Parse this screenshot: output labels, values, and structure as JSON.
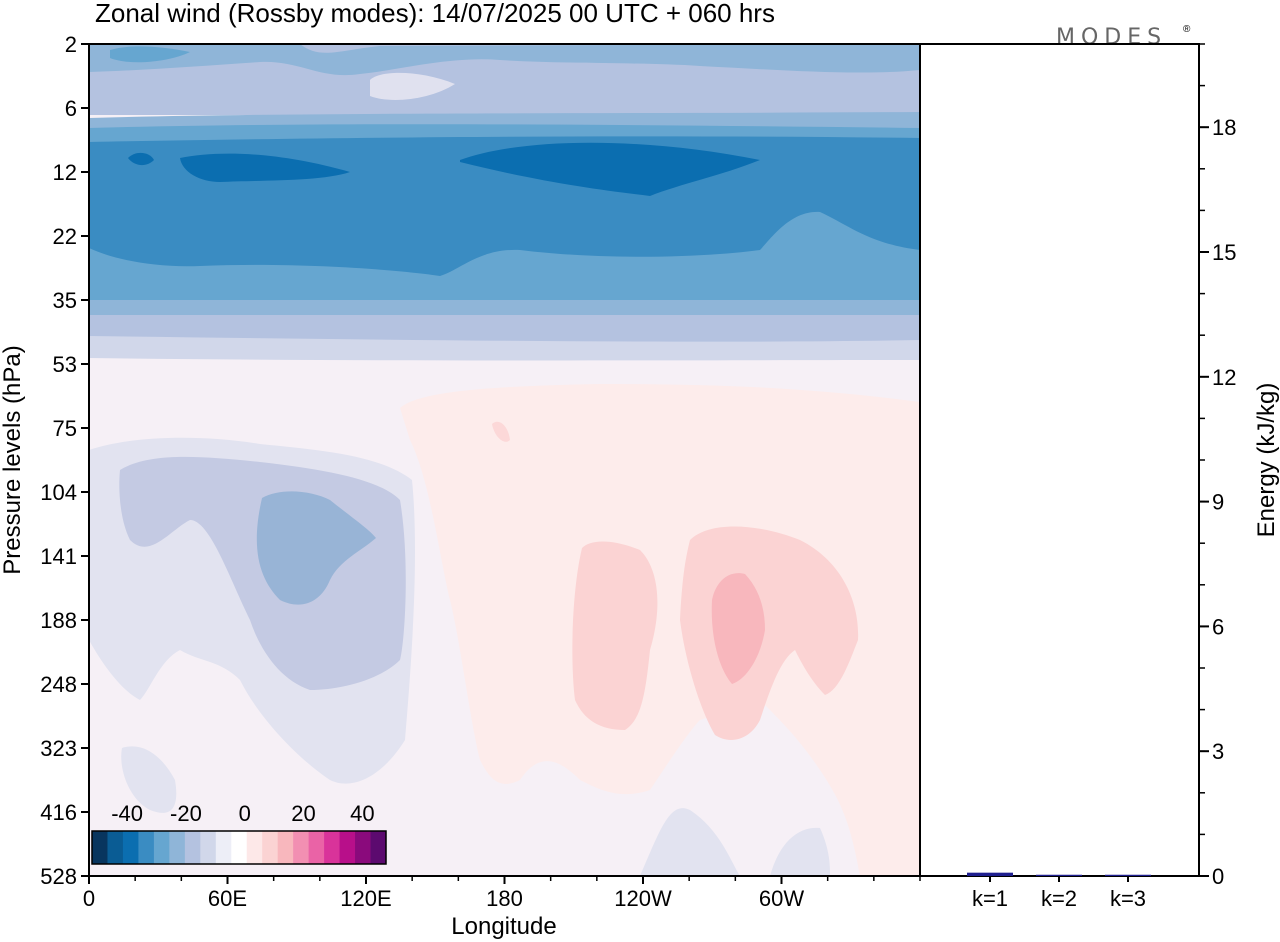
{
  "title": "Zonal wind (Rossby modes):  14/07/2025  00 UTC  + 060 hrs",
  "logo": "MODES",
  "logo_mark": "®",
  "chart_data": [
    {
      "type": "heatmap",
      "title": "Zonal wind (Rossby modes):  14/07/2025  00 UTC  + 060 hrs",
      "xlabel": "Longitude",
      "ylabel": "Pressure levels (hPa)",
      "x_ticks": [
        "0",
        "60E",
        "120E",
        "180",
        "120W",
        "60W"
      ],
      "y_ticks": [
        "2",
        "6",
        "12",
        "22",
        "35",
        "53",
        "75",
        "104",
        "141",
        "188",
        "248",
        "323",
        "416",
        "528"
      ],
      "colorbar": {
        "tick_labels": [
          "-40",
          "-20",
          "0",
          "20",
          "40"
        ],
        "range": [
          -50,
          50
        ],
        "step": 5,
        "colors": [
          "#08355e",
          "#0a5c94",
          "#0b6eb0",
          "#3a8cc2",
          "#66a6d0",
          "#8fb5d8",
          "#b4c2e0",
          "#d1d7ea",
          "#edeef7",
          "#ffffff",
          "#fde8e8",
          "#fbd3d3",
          "#f8b7bd",
          "#f28fb2",
          "#ea63a6",
          "#d9339a",
          "#b80f8a",
          "#8a0a7c",
          "#5c0a6f"
        ],
        "placement": "bottom-left"
      },
      "grid": false,
      "legend": "colorbar",
      "fields": [
        {
          "region": "upper-stratosphere 2-6 hPa, all longitudes",
          "value": -20
        },
        {
          "region": "around 2-6 hPa near 150E-180",
          "value": -5
        },
        {
          "region": "12-22 hPa band, all longitudes",
          "value": -40
        },
        {
          "region": "12 hPa cores near 30E-70E and 150W-100W",
          "value": -45
        },
        {
          "region": "35-53 hPa transition",
          "value": -15
        },
        {
          "region": "troposphere 53-528 hPa background",
          "value": 0
        },
        {
          "region": "104-323 hPa near 30E-120E",
          "value": -10
        },
        {
          "region": "120-200 hPa core near 60E-100E",
          "value": -20
        },
        {
          "region": "75-416 hPa near 130E-60W",
          "value": 5
        },
        {
          "region": "104-248 hPa near 150W-130W",
          "value": 10
        },
        {
          "region": "104-323 hPa near 110W-40W",
          "value": 10
        },
        {
          "region": "141-248 hPa core near 80W-60W",
          "value": 15
        }
      ]
    },
    {
      "type": "bar",
      "ylabel": "Energy (kJ/kg)",
      "categories": [
        "k=1",
        "k=2",
        "k=3"
      ],
      "values": [
        0.08,
        0.03,
        0.03
      ],
      "ylim": [
        0,
        20
      ],
      "y_ticks": [
        0,
        3,
        6,
        9,
        12,
        15,
        18
      ],
      "bar_color": "#1f1f8f",
      "grid": false
    }
  ]
}
